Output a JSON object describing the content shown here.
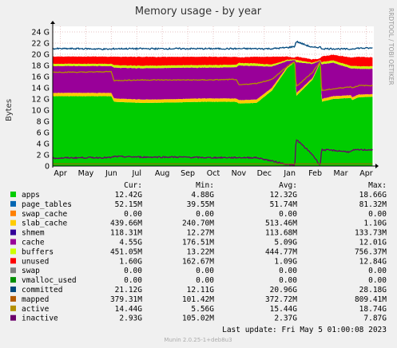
{
  "chart_data": {
    "type": "area",
    "title": "Memory usage - by year",
    "ylabel": "Bytes",
    "watermark": "RRDTOOL / TOBI OETIKER",
    "footer": "Munin 2.0.25-1+deb8u3",
    "last_update": "Last update:  Fri May  5 01:00:08 2023",
    "xlabels": [
      "Apr",
      "May",
      "Jun",
      "Jul",
      "Aug",
      "Sep",
      "Oct",
      "Nov",
      "Dec",
      "Jan",
      "Feb",
      "Mar",
      "Apr"
    ],
    "yticks": [
      "0",
      "2 G",
      "4 G",
      "6 G",
      "8 G",
      "10 G",
      "12 G",
      "14 G",
      "16 G",
      "18 G",
      "20 G",
      "22 G",
      "24 G"
    ],
    "ylim": [
      0,
      25
    ],
    "x_months": [
      0.3,
      1.3,
      2.3,
      3.3,
      4.3,
      5.3,
      6.3,
      7.3,
      8.3,
      9.3,
      10.3,
      11.3,
      12.3
    ],
    "columns": [
      "Cur:",
      "Min:",
      "Avg:",
      "Max:"
    ],
    "legend": [
      {
        "name": "apps",
        "color": "#00cc00",
        "cur": "12.42G",
        "min": "4.88G",
        "avg": "12.32G",
        "max": "18.66G"
      },
      {
        "name": "page_tables",
        "color": "#0066b3",
        "cur": "52.15M",
        "min": "39.55M",
        "avg": "51.74M",
        "max": "81.32M"
      },
      {
        "name": "swap_cache",
        "color": "#ff8000",
        "cur": "0.00",
        "min": "0.00",
        "avg": "0.00",
        "max": "0.00"
      },
      {
        "name": "slab_cache",
        "color": "#ffcc00",
        "cur": "439.66M",
        "min": "240.70M",
        "avg": "513.46M",
        "max": "1.10G"
      },
      {
        "name": "shmem",
        "color": "#330099",
        "cur": "118.31M",
        "min": "12.27M",
        "avg": "113.68M",
        "max": "133.73M"
      },
      {
        "name": "cache",
        "color": "#990099",
        "cur": "4.55G",
        "min": "176.51M",
        "avg": "5.09G",
        "max": "12.01G"
      },
      {
        "name": "buffers",
        "color": "#ccff00",
        "cur": "451.05M",
        "min": "13.22M",
        "avg": "444.77M",
        "max": "756.37M"
      },
      {
        "name": "unused",
        "color": "#ff0000",
        "cur": "1.60G",
        "min": "162.67M",
        "avg": "1.09G",
        "max": "12.84G"
      },
      {
        "name": "swap",
        "color": "#808080",
        "cur": "0.00",
        "min": "0.00",
        "avg": "0.00",
        "max": "0.00"
      },
      {
        "name": "vmalloc_used",
        "color": "#008f00",
        "cur": "0.00",
        "min": "0.00",
        "avg": "0.00",
        "max": "0.00"
      },
      {
        "name": "committed",
        "color": "#00487d",
        "cur": "21.12G",
        "min": "12.11G",
        "avg": "20.96G",
        "max": "28.18G"
      },
      {
        "name": "mapped",
        "color": "#b35a00",
        "cur": "379.31M",
        "min": "101.42M",
        "avg": "372.72M",
        "max": "809.41M"
      },
      {
        "name": "active",
        "color": "#b38f00",
        "cur": "14.44G",
        "min": "5.56G",
        "avg": "15.44G",
        "max": "18.74G"
      },
      {
        "name": "inactive",
        "color": "#6b006b",
        "cur": "2.93G",
        "min": "105.02M",
        "avg": "2.37G",
        "max": "7.87G"
      }
    ],
    "series_keypoints": {
      "x": [
        0,
        1.2,
        2.3,
        2.4,
        3.5,
        5,
        6,
        7.2,
        7.3,
        8,
        8.6,
        9.2,
        9.5,
        9.55,
        10.2,
        10.5,
        10.55,
        11,
        11.7,
        11.75,
        12,
        12.5
      ],
      "apps": [
        12.5,
        12.5,
        12.5,
        11.5,
        11.3,
        11.4,
        11.5,
        11.5,
        11.2,
        11.3,
        13.5,
        17.5,
        18.6,
        12.5,
        15.5,
        18.5,
        11.5,
        12.0,
        12.2,
        11.8,
        12.3,
        12.4
      ],
      "slab_cache": [
        0.6,
        0.6,
        0.6,
        0.6,
        0.6,
        0.6,
        0.6,
        0.6,
        0.6,
        0.6,
        0.5,
        0.3,
        0.2,
        0.5,
        0.3,
        0.2,
        0.5,
        0.5,
        0.5,
        0.5,
        0.5,
        0.45
      ],
      "cache": [
        4.8,
        4.8,
        4.8,
        5.5,
        5.6,
        5.6,
        5.5,
        5.6,
        6.2,
        6.0,
        3.8,
        1.0,
        0.2,
        5.6,
        2.5,
        0.2,
        6.2,
        6.0,
        4.8,
        5.2,
        4.6,
        4.55
      ],
      "buffers": [
        0.4,
        0.4,
        0.4,
        0.45,
        0.45,
        0.45,
        0.45,
        0.45,
        0.45,
        0.45,
        0.35,
        0.2,
        0.1,
        0.4,
        0.2,
        0.1,
        0.4,
        0.4,
        0.45,
        0.45,
        0.45,
        0.45
      ],
      "unused": [
        1.3,
        1.3,
        1.3,
        1.5,
        1.6,
        1.5,
        1.5,
        1.4,
        1.0,
        1.2,
        1.4,
        0.6,
        0.3,
        0.6,
        0.6,
        0.3,
        1.0,
        1.0,
        1.5,
        1.5,
        1.7,
        1.6
      ],
      "committed": [
        21.0,
        21.0,
        20.9,
        21.0,
        21.0,
        21.0,
        21.0,
        21.0,
        21.0,
        21.0,
        21.0,
        21.2,
        21.4,
        22.3,
        21.2,
        21.3,
        21.0,
        21.0,
        20.9,
        21.0,
        21.1,
        21.1
      ],
      "active": [
        16.8,
        16.8,
        16.9,
        15.3,
        15.4,
        15.4,
        15.4,
        15.5,
        14.5,
        14.8,
        15.5,
        17.8,
        18.7,
        14.2,
        16.8,
        18.7,
        13.5,
        13.8,
        14.2,
        14.0,
        14.4,
        14.4
      ],
      "inactive": [
        1.4,
        1.5,
        1.5,
        1.7,
        1.6,
        1.6,
        1.5,
        1.5,
        1.5,
        1.5,
        0.9,
        0.3,
        0.1,
        4.8,
        2.0,
        0.1,
        2.9,
        2.8,
        2.5,
        2.8,
        2.9,
        2.9
      ]
    }
  }
}
